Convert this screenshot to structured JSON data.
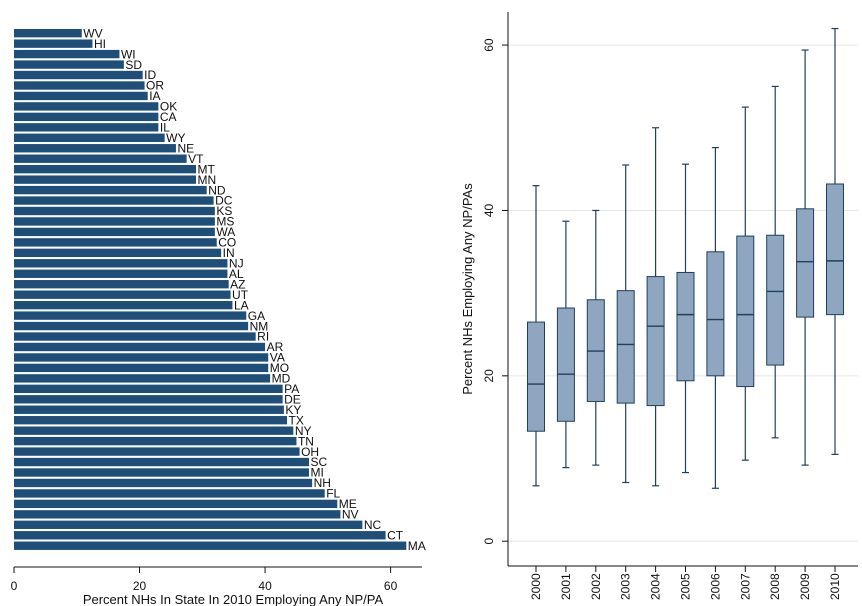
{
  "chart_data": [
    {
      "type": "bar",
      "orientation": "horizontal",
      "title": "",
      "xlabel": "Percent NHs In State In 2010 Employing Any NP/PA",
      "ylabel": "",
      "xlim": [
        0,
        65
      ],
      "xticks": [
        "0",
        "20",
        "40",
        "60"
      ],
      "grid": false,
      "color": "#1f4e79",
      "categories": [
        "WV",
        "HI",
        "WI",
        "SD",
        "ID",
        "OR",
        "IA",
        "OK",
        "CA",
        "IL",
        "WY",
        "NE",
        "VT",
        "MT",
        "MN",
        "ND",
        "DC",
        "KS",
        "MS",
        "WA",
        "CO",
        "IN",
        "NJ",
        "AL",
        "AZ",
        "UT",
        "LA",
        "GA",
        "NM",
        "RI",
        "AR",
        "VA",
        "MO",
        "MD",
        "PA",
        "DE",
        "KY",
        "TX",
        "NY",
        "TN",
        "OH",
        "SC",
        "MI",
        "NH",
        "FL",
        "ME",
        "NV",
        "NC",
        "CT",
        "MA"
      ],
      "values": [
        10.8,
        12.5,
        16.8,
        17.5,
        20.5,
        20.8,
        21.3,
        23.0,
        23.0,
        23.0,
        24.0,
        25.8,
        27.5,
        29.0,
        29.0,
        30.7,
        31.8,
        32.0,
        32.0,
        32.0,
        32.3,
        33.0,
        34.0,
        34.0,
        34.2,
        34.5,
        34.8,
        37.0,
        37.3,
        38.5,
        40.0,
        40.5,
        40.5,
        40.8,
        42.8,
        42.8,
        43.0,
        43.5,
        44.5,
        45.0,
        45.5,
        47.0,
        47.0,
        47.5,
        49.5,
        51.5,
        52.0,
        55.5,
        59.2,
        62.5
      ]
    },
    {
      "type": "boxplot",
      "title": "",
      "xlabel": "",
      "ylabel": "Percent NHs Employing Any NP/PAs",
      "ylim": [
        -3,
        64
      ],
      "yticks": [
        "0",
        "20",
        "40",
        "60"
      ],
      "grid": true,
      "color": "#8fa6c0",
      "categories": [
        "2000",
        "2001",
        "2002",
        "2003",
        "2004",
        "2005",
        "2006",
        "2007",
        "2008",
        "2009",
        "2010"
      ],
      "boxes": [
        {
          "min": 6.7,
          "q1": 13.3,
          "median": 19.0,
          "q3": 26.5,
          "max": 43.0
        },
        {
          "min": 8.9,
          "q1": 14.5,
          "median": 20.2,
          "q3": 28.2,
          "max": 38.7
        },
        {
          "min": 9.2,
          "q1": 16.9,
          "median": 23.0,
          "q3": 29.2,
          "max": 40.0
        },
        {
          "min": 7.1,
          "q1": 16.7,
          "median": 23.8,
          "q3": 30.3,
          "max": 45.5
        },
        {
          "min": 6.7,
          "q1": 16.4,
          "median": 26.0,
          "q3": 32.0,
          "max": 50.0
        },
        {
          "min": 8.3,
          "q1": 19.4,
          "median": 27.4,
          "q3": 32.5,
          "max": 45.6
        },
        {
          "min": 6.4,
          "q1": 20.0,
          "median": 26.8,
          "q3": 35.0,
          "max": 47.6
        },
        {
          "min": 9.8,
          "q1": 18.7,
          "median": 27.4,
          "q3": 36.9,
          "max": 52.5
        },
        {
          "min": 12.5,
          "q1": 21.3,
          "median": 30.2,
          "q3": 37.0,
          "max": 55.0
        },
        {
          "min": 9.2,
          "q1": 27.1,
          "median": 33.8,
          "q3": 40.2,
          "max": 59.4
        },
        {
          "min": 10.5,
          "q1": 27.4,
          "median": 33.9,
          "q3": 43.2,
          "max": 62.0
        }
      ]
    }
  ]
}
